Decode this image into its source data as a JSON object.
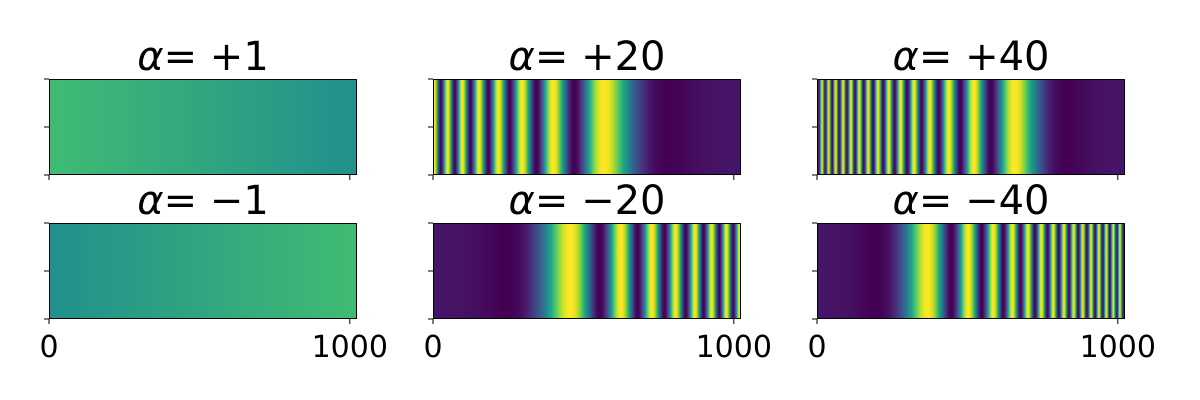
{
  "chart_data": [
    {
      "type": "heatmap",
      "title_symbol": "α",
      "title_value": "= +1",
      "alpha": 1,
      "xlim": [
        0,
        1000
      ],
      "xticks": [
        "0",
        "1000"
      ],
      "colormap": "viridis",
      "colors": [
        "#3fbc73",
        "#21908d"
      ]
    },
    {
      "type": "heatmap",
      "title_symbol": "α",
      "title_value": "= +20",
      "alpha": 20,
      "xlim": [
        0,
        1000
      ],
      "xticks": [
        "0",
        "1000"
      ],
      "colormap": "viridis"
    },
    {
      "type": "heatmap",
      "title_symbol": "α",
      "title_value": "= +40",
      "alpha": 40,
      "xlim": [
        0,
        1000
      ],
      "xticks": [
        "0",
        "1000"
      ],
      "colormap": "viridis"
    },
    {
      "type": "heatmap",
      "title_symbol": "α",
      "title_value": "= −1",
      "alpha": -1,
      "xlim": [
        0,
        1000
      ],
      "xticks": [
        "0",
        "1000"
      ],
      "colormap": "viridis",
      "colors": [
        "#21908d",
        "#3fbc73"
      ]
    },
    {
      "type": "heatmap",
      "title_symbol": "α",
      "title_value": "= −20",
      "alpha": -20,
      "xlim": [
        0,
        1000
      ],
      "xticks": [
        "0",
        "1000"
      ],
      "colormap": "viridis"
    },
    {
      "type": "heatmap",
      "title_symbol": "α",
      "title_value": "= −40",
      "alpha": -40,
      "xlim": [
        0,
        1000
      ],
      "xticks": [
        "0",
        "1000"
      ],
      "colormap": "viridis"
    }
  ]
}
